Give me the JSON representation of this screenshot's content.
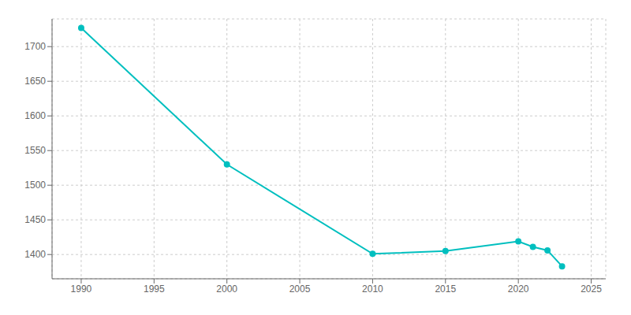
{
  "chart_data": {
    "type": "line",
    "x": [
      1990,
      2000,
      2010,
      2015,
      2020,
      2021,
      2022,
      2023
    ],
    "values": [
      1727,
      1530,
      1401,
      1405,
      1419,
      1411,
      1406,
      1383
    ],
    "color": "#00BFBF",
    "marker": "circle",
    "xlim": [
      1988,
      2026
    ],
    "ylim": [
      1365,
      1740
    ],
    "xticks": [
      1990,
      1995,
      2000,
      2005,
      2010,
      2015,
      2020,
      2025
    ],
    "yticks": [
      1400,
      1450,
      1500,
      1550,
      1600,
      1650,
      1700
    ],
    "grid": true
  }
}
